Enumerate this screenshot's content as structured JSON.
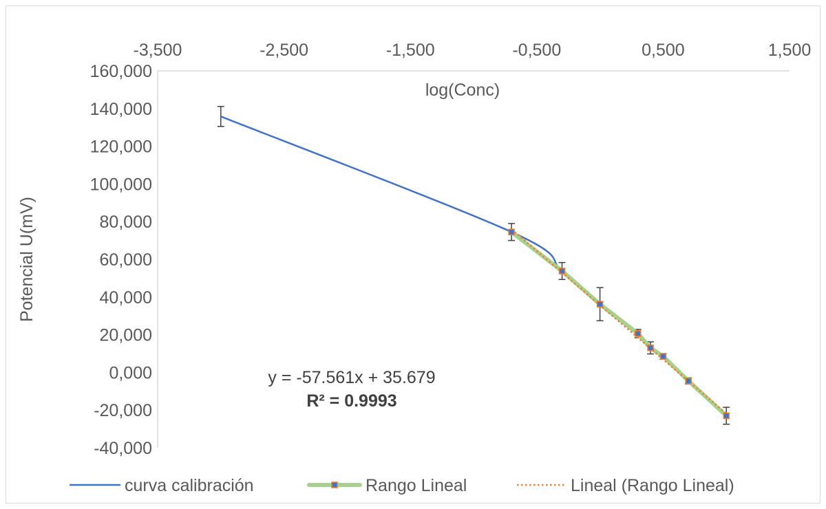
{
  "chart_data": {
    "type": "scatter",
    "xlabel": "log(Conc)",
    "ylabel": "Potencial U(mV)",
    "xlim": [
      -3.5,
      1.5
    ],
    "ylim": [
      -40,
      160
    ],
    "x_ticks": [
      "-3,500",
      "-2,500",
      "-1,500",
      "-0,500",
      "0,500",
      "1,500"
    ],
    "x_tick_values": [
      -3.5,
      -2.5,
      -1.5,
      -0.5,
      0.5,
      1.5
    ],
    "y_ticks": [
      "160,000",
      "140,000",
      "120,000",
      "100,000",
      "80,000",
      "60,000",
      "40,000",
      "20,000",
      "0,000",
      "-20,000",
      "-40,000"
    ],
    "y_tick_values": [
      160,
      140,
      120,
      100,
      80,
      60,
      40,
      20,
      0,
      -20,
      -40
    ],
    "x_axis_position": "top",
    "grid": false,
    "legend_position": "bottom",
    "series": [
      {
        "name": "curva calibración",
        "color": "#4472c4",
        "style": "smooth-line",
        "x": [
          -3.0,
          -0.7,
          -0.3,
          0.0,
          0.3,
          0.4,
          0.5,
          0.7,
          1.0
        ],
        "y": [
          135.8,
          74.5,
          53.8,
          36.2,
          20.6,
          13.0,
          8.5,
          -4.5,
          -23.0
        ],
        "error": [
          5.3,
          4.5,
          4.5,
          8.8,
          2.2,
          3.2,
          1.5,
          1.6,
          4.5
        ]
      },
      {
        "name": "Rango Lineal",
        "color": "#a9d18e",
        "marker_color": "#4472c4",
        "marker_border": "#ed7d31",
        "style": "line-marker",
        "x": [
          -0.7,
          -0.3,
          0.0,
          0.3,
          0.4,
          0.5,
          0.7,
          1.0
        ],
        "y": [
          74.5,
          53.8,
          36.2,
          20.6,
          13.0,
          8.5,
          -4.5,
          -23.0
        ]
      },
      {
        "name": "Lineal (Rango Lineal)",
        "color": "#ed7d31",
        "style": "dotted-trendline",
        "slope": -57.561,
        "intercept": 35.679,
        "x_range": [
          -0.7,
          1.0
        ]
      }
    ],
    "annotations": {
      "equation": "y = -57.561x + 35.679",
      "r_squared": "R² = 0.9993"
    }
  }
}
